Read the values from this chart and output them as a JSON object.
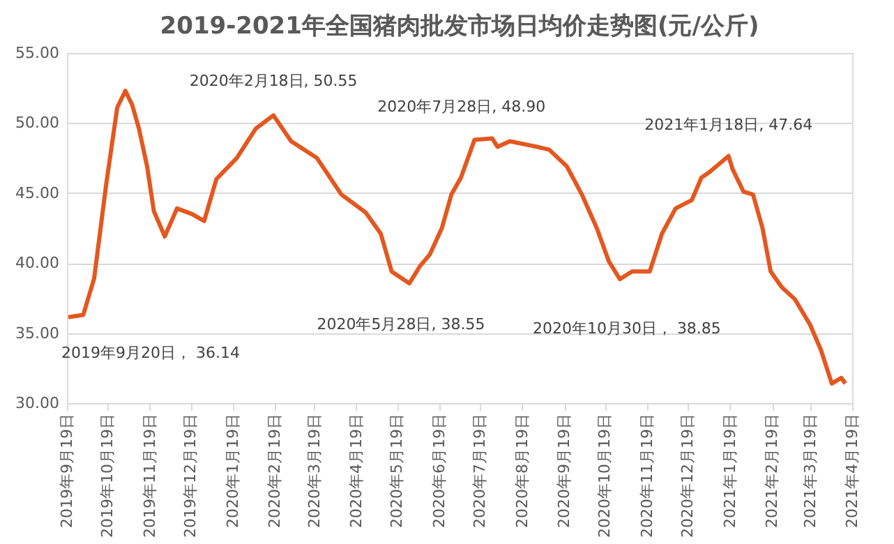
{
  "chart_data": {
    "type": "line",
    "title": "2019-2021年全国猪肉批发市场日均价走势图(元/公斤)",
    "x": [
      "2019-09-20",
      "2019-10-01",
      "2019-10-09",
      "2019-10-18",
      "2019-10-26",
      "2019-11-01",
      "2019-11-06",
      "2019-11-11",
      "2019-11-17",
      "2019-11-22",
      "2019-11-30",
      "2019-12-09",
      "2019-12-20",
      "2019-12-29",
      "2020-01-07",
      "2020-01-22",
      "2020-02-05",
      "2020-02-18",
      "2020-03-02",
      "2020-03-21",
      "2020-04-08",
      "2020-04-26",
      "2020-05-07",
      "2020-05-15",
      "2020-05-28",
      "2020-06-05",
      "2020-06-12",
      "2020-06-21",
      "2020-06-28",
      "2020-07-05",
      "2020-07-15",
      "2020-07-28",
      "2020-08-01",
      "2020-08-10",
      "2020-08-30",
      "2020-09-08",
      "2020-09-21",
      "2020-10-02",
      "2020-10-13",
      "2020-10-22",
      "2020-10-30",
      "2020-11-08",
      "2020-11-21",
      "2020-11-30",
      "2020-12-10",
      "2020-12-22",
      "2020-12-29",
      "2021-01-04",
      "2021-01-18",
      "2021-01-21",
      "2021-01-29",
      "2021-02-05",
      "2021-02-12",
      "2021-02-18",
      "2021-02-26",
      "2021-03-08",
      "2021-03-19",
      "2021-03-27",
      "2021-04-04",
      "2021-04-11",
      "2021-04-14"
    ],
    "series": [
      {
        "color": "#e4571f",
        "values": [
          36.14,
          36.3,
          38.9,
          45.7,
          51.1,
          52.3,
          51.3,
          49.6,
          46.9,
          43.7,
          41.9,
          43.9,
          43.5,
          43.0,
          46.0,
          47.5,
          49.6,
          50.55,
          48.7,
          47.5,
          44.9,
          43.6,
          42.1,
          39.4,
          38.55,
          39.8,
          40.6,
          42.5,
          44.9,
          46.1,
          48.8,
          48.9,
          48.3,
          48.7,
          48.3,
          48.1,
          46.9,
          44.9,
          42.5,
          40.1,
          38.85,
          39.4,
          39.4,
          42.1,
          43.9,
          44.5,
          46.1,
          46.5,
          47.64,
          46.7,
          45.1,
          44.9,
          42.5,
          39.4,
          38.3,
          37.4,
          35.6,
          33.8,
          31.4,
          31.8,
          31.4
        ]
      }
    ],
    "xlim": [
      "2019-09-19",
      "2021-04-19"
    ],
    "xticks": [
      {
        "value": "2019-09-19",
        "label": "2019年9月19日"
      },
      {
        "value": "2019-10-19",
        "label": "2019年10月19日"
      },
      {
        "value": "2019-11-19",
        "label": "2019年11月19日"
      },
      {
        "value": "2019-12-19",
        "label": "2019年12月19日"
      },
      {
        "value": "2020-01-19",
        "label": "2020年1月19日"
      },
      {
        "value": "2020-02-19",
        "label": "2020年2月19日"
      },
      {
        "value": "2020-03-19",
        "label": "2020年3月19日"
      },
      {
        "value": "2020-04-19",
        "label": "2020年4月19日"
      },
      {
        "value": "2020-05-19",
        "label": "2020年5月19日"
      },
      {
        "value": "2020-06-19",
        "label": "2020年6月19日"
      },
      {
        "value": "2020-07-19",
        "label": "2020年7月19日"
      },
      {
        "value": "2020-08-19",
        "label": "2020年8月19日"
      },
      {
        "value": "2020-09-19",
        "label": "2020年9月19日"
      },
      {
        "value": "2020-10-19",
        "label": "2020年10月19日"
      },
      {
        "value": "2020-11-19",
        "label": "2020年11月19日"
      },
      {
        "value": "2020-12-19",
        "label": "2020年12月19日"
      },
      {
        "value": "2021-01-19",
        "label": "2021年1月19日"
      },
      {
        "value": "2021-02-19",
        "label": "2021年2月19日"
      },
      {
        "value": "2021-03-19",
        "label": "2021年3月19日"
      },
      {
        "value": "2021-04-19",
        "label": "2021年4月19日"
      }
    ],
    "ylim": [
      30,
      55
    ],
    "yticks": [
      {
        "value": 30,
        "label": "30.00"
      },
      {
        "value": 35,
        "label": "35.00"
      },
      {
        "value": 40,
        "label": "40.00"
      },
      {
        "value": 45,
        "label": "45.00"
      },
      {
        "value": 50,
        "label": "50.00"
      },
      {
        "value": 55,
        "label": "55.00"
      }
    ],
    "grid": "y",
    "legend": false,
    "marker": "none",
    "line_style": "solid",
    "annotations": [
      {
        "text": "2019年9月20日， 36.14",
        "x": "2019-09-20",
        "y": 36.14
      },
      {
        "text": "2020年2月18日, 50.55",
        "x": "2020-02-18",
        "y": 50.55
      },
      {
        "text": "2020年5月28日, 38.55",
        "x": "2020-05-28",
        "y": 38.55
      },
      {
        "text": "2020年7月28日, 48.90",
        "x": "2020-07-28",
        "y": 48.9
      },
      {
        "text": "2020年10月30日， 38.85",
        "x": "2020-10-30",
        "y": 38.85
      },
      {
        "text": "2021年1月18日, 47.64",
        "x": "2021-01-18",
        "y": 47.64
      }
    ]
  }
}
